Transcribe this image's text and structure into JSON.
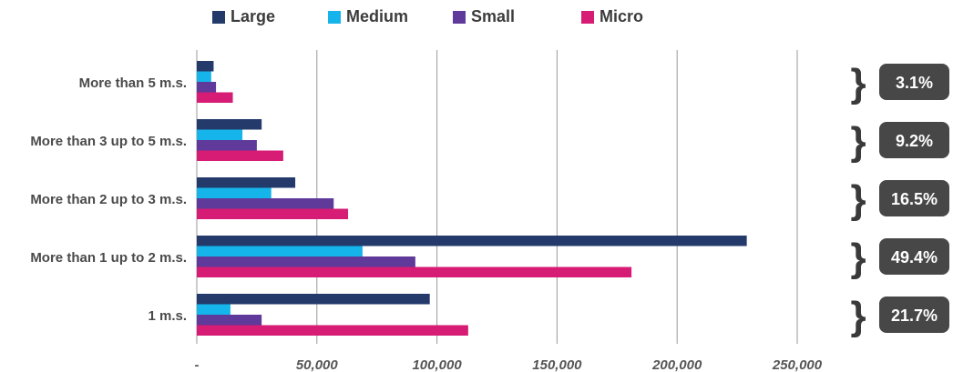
{
  "chart_data": {
    "type": "bar",
    "orientation": "horizontal",
    "categories": [
      "More than 5 m.s.",
      "More than 3 up to 5 m.s.",
      "More than 2 up to 3 m.s.",
      "More than 1 up to 2 m.s.",
      "1  m.s."
    ],
    "series": [
      {
        "name": "Large",
        "color": "#233a6b",
        "values": [
          7000,
          27000,
          41000,
          229000,
          97000
        ]
      },
      {
        "name": "Medium",
        "color": "#15b4ea",
        "values": [
          6000,
          19000,
          31000,
          69000,
          14000
        ]
      },
      {
        "name": "Small",
        "color": "#5f3a9a",
        "values": [
          8000,
          25000,
          57000,
          91000,
          27000
        ]
      },
      {
        "name": "Micro",
        "color": "#d61c74",
        "values": [
          15000,
          36000,
          63000,
          181000,
          113000
        ]
      }
    ],
    "xlim": [
      0,
      250000
    ],
    "xticks": [
      0,
      50000,
      100000,
      150000,
      200000,
      250000
    ],
    "xtick_labels": [
      "-",
      "50,000",
      "100,000",
      "150,000",
      "200,000",
      "250,000"
    ],
    "grid": true,
    "legend_position": "top",
    "annotations": [
      "3.1%",
      "9.2%",
      "16.5%",
      "49.4%",
      "21.7%"
    ]
  }
}
